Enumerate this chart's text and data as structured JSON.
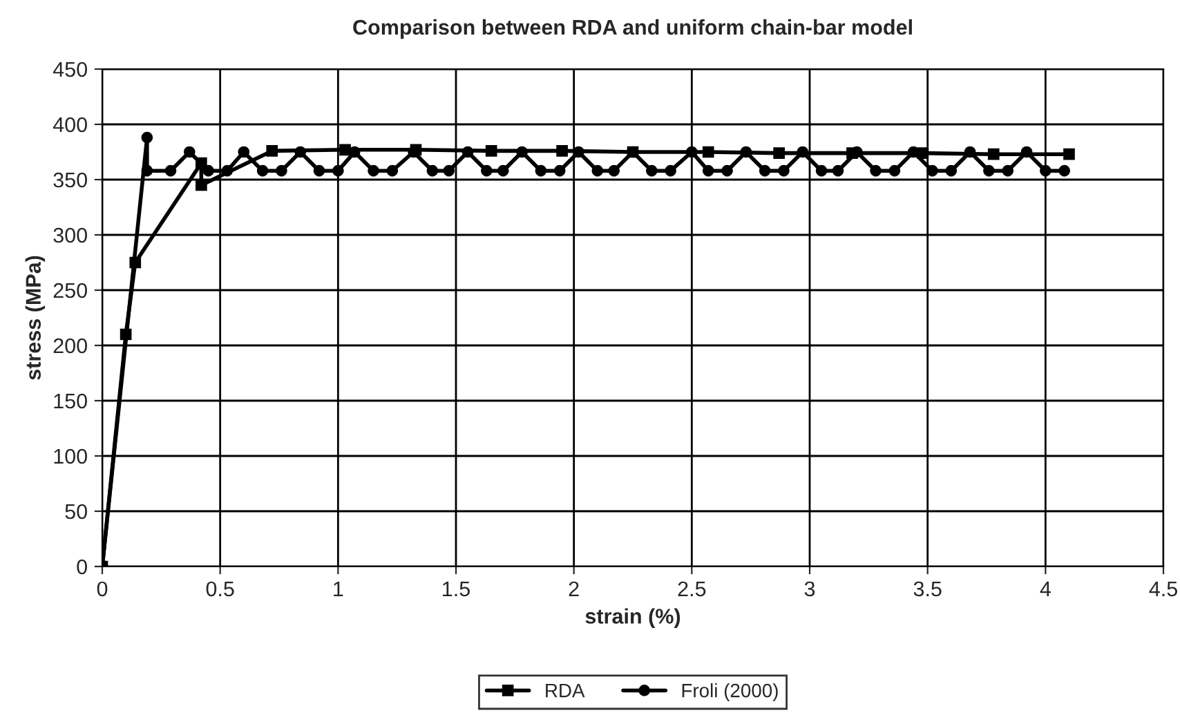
{
  "chart_data": {
    "type": "line",
    "title": "Comparison between RDA and uniform chain-bar model",
    "xlabel": "strain (%)",
    "ylabel": "stress (MPa)",
    "xlim": [
      0,
      4.5
    ],
    "xticks": [
      0,
      0.5,
      1,
      1.5,
      2,
      2.5,
      3,
      3.5,
      4,
      4.5
    ],
    "ylim": [
      0,
      450
    ],
    "yticks": [
      0,
      50,
      100,
      150,
      200,
      250,
      300,
      350,
      400,
      450
    ],
    "grid": true,
    "legend": "bottom",
    "line_style": "solid",
    "series": [
      {
        "name": "RDA",
        "color": "#000000",
        "marker": "square",
        "x": [
          0,
          0.1,
          0.14,
          0.42,
          0.42,
          0.72,
          1.03,
          1.33,
          1.65,
          1.95,
          2.25,
          2.57,
          2.87,
          3.18,
          3.48,
          3.78,
          4.1
        ],
        "values": [
          0,
          210,
          275,
          365,
          345,
          376,
          377,
          377,
          376,
          376,
          375,
          375,
          374,
          374,
          374,
          373,
          373
        ]
      },
      {
        "name": "Froli (2000)",
        "color": "#000000",
        "marker": "circle",
        "x": [
          0,
          0.19,
          0.19,
          0.29,
          0.37,
          0.45,
          0.53,
          0.6,
          0.68,
          0.76,
          0.84,
          0.92,
          1.0,
          1.07,
          1.15,
          1.23,
          1.32,
          1.4,
          1.47,
          1.55,
          1.63,
          1.7,
          1.78,
          1.86,
          1.94,
          2.02,
          2.1,
          2.17,
          2.25,
          2.33,
          2.41,
          2.5,
          2.57,
          2.65,
          2.73,
          2.81,
          2.89,
          2.97,
          3.05,
          3.12,
          3.2,
          3.28,
          3.36,
          3.44,
          3.52,
          3.6,
          3.68,
          3.76,
          3.84,
          3.92,
          4.0,
          4.08
        ],
        "values": [
          0,
          388,
          358,
          358,
          375,
          358,
          358,
          375,
          358,
          358,
          375,
          358,
          358,
          375,
          358,
          358,
          375,
          358,
          358,
          375,
          358,
          358,
          375,
          358,
          358,
          375,
          358,
          358,
          375,
          358,
          358,
          375,
          358,
          358,
          375,
          358,
          358,
          375,
          358,
          358,
          375,
          358,
          358,
          375,
          358,
          358,
          375,
          358,
          358,
          375,
          358,
          358
        ]
      }
    ]
  }
}
